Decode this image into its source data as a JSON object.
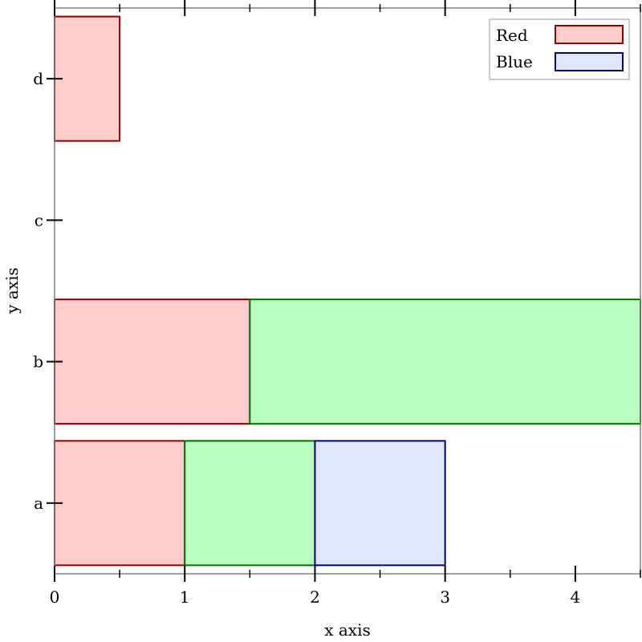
{
  "chart_data": {
    "type": "bar",
    "orientation": "horizontal",
    "stacked": true,
    "categories": [
      "a",
      "b",
      "c",
      "d"
    ],
    "xlabel": "x axis",
    "ylabel": "y axis",
    "xlim": [
      0,
      4.5
    ],
    "x_ticks": [
      0,
      1,
      2,
      3,
      4
    ],
    "x_ticks_labels": [
      "0",
      "1",
      "2",
      "3",
      "4"
    ],
    "grid": false,
    "legend_position": "top-right",
    "legend": [
      {
        "label": "Red",
        "fill": "#ffcccc",
        "stroke": "#8b0000"
      },
      {
        "label": "Blue",
        "fill": "#e0e6ff",
        "stroke": "#00006e"
      }
    ],
    "series": [
      {
        "values": [
          1,
          1.5,
          0,
          0.5
        ],
        "fill": "#ffcccc",
        "stroke": "#8b0000"
      },
      {
        "values": [
          1,
          3,
          0,
          0
        ],
        "fill": "#b9ffbf",
        "stroke": "#007000"
      },
      {
        "values": [
          1,
          0,
          0,
          0
        ],
        "fill": "#e0e6ff",
        "stroke": "#00006e"
      }
    ]
  }
}
